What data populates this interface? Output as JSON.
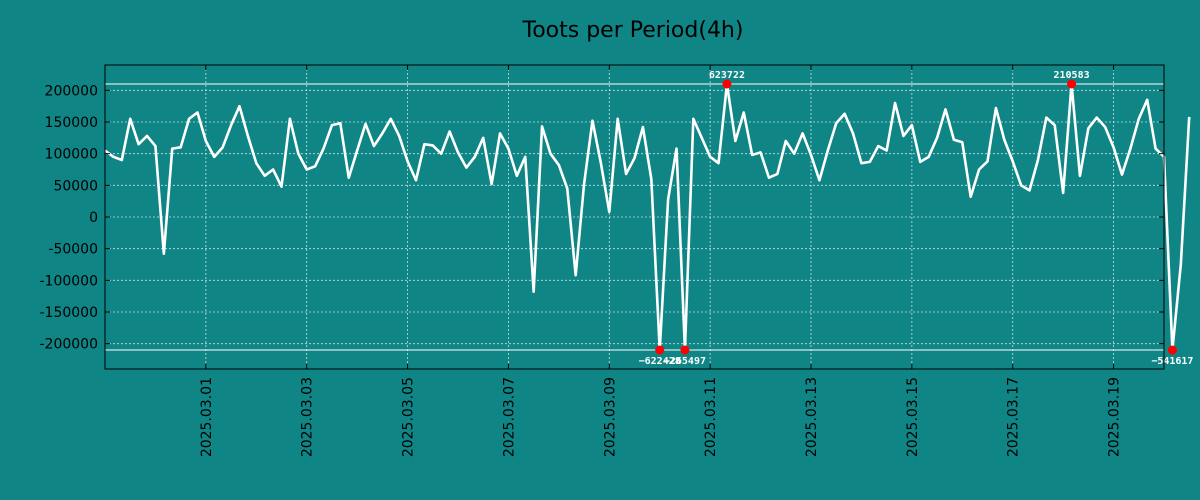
{
  "chart_data": {
    "type": "line",
    "title": "Toots per Period(4h)",
    "xlabel": "",
    "ylabel": "",
    "ylim": [
      -240000,
      240000
    ],
    "xlim": [
      0,
      126
    ],
    "yticks": [
      {
        "value": 200000,
        "label": "200000"
      },
      {
        "value": 150000,
        "label": "150000"
      },
      {
        "value": 100000,
        "label": "100000"
      },
      {
        "value": 50000,
        "label": "50000"
      },
      {
        "value": 0,
        "label": "0"
      },
      {
        "value": -50000,
        "label": "-50000"
      },
      {
        "value": -100000,
        "label": "-100000"
      },
      {
        "value": -150000,
        "label": "-150000"
      },
      {
        "value": -200000,
        "label": "-200000"
      }
    ],
    "xticks": [
      {
        "value": 12,
        "label": "2025.03.01"
      },
      {
        "value": 24,
        "label": "2025.03.03"
      },
      {
        "value": 36,
        "label": "2025.03.05"
      },
      {
        "value": 48,
        "label": "2025.03.07"
      },
      {
        "value": 60,
        "label": "2025.03.09"
      },
      {
        "value": 72,
        "label": "2025.03.11"
      },
      {
        "value": 84,
        "label": "2025.03.13"
      },
      {
        "value": 96,
        "label": "2025.03.15"
      },
      {
        "value": 108,
        "label": "2025.03.17"
      },
      {
        "value": 120,
        "label": "2025.03.19"
      }
    ],
    "clip_lines": {
      "upper": 210000,
      "lower": -210000
    },
    "series": [
      {
        "name": "toots",
        "color": "#ffffff",
        "values": [
          105000,
          95000,
          90000,
          155000,
          115000,
          128000,
          112000,
          -58000,
          108000,
          110000,
          155000,
          165000,
          120000,
          95000,
          110000,
          145000,
          175000,
          128000,
          85000,
          65000,
          75000,
          48000,
          155000,
          100000,
          75000,
          80000,
          108000,
          145000,
          148000,
          62000,
          105000,
          147000,
          112000,
          132000,
          155000,
          128000,
          88000,
          58000,
          115000,
          113000,
          100000,
          135000,
          102000,
          78000,
          95000,
          125000,
          52000,
          132000,
          108000,
          65000,
          95000,
          -118000,
          143000,
          100000,
          82000,
          45000,
          -92000,
          52000,
          152000,
          85000,
          8000,
          155000,
          68000,
          93000,
          142000,
          60000,
          -210000,
          28000,
          108000,
          -210000,
          155000,
          125000,
          95000,
          85000,
          210000,
          120000,
          165000,
          98000,
          102000,
          62000,
          68000,
          120000,
          100000,
          132000,
          98000,
          58000,
          105000,
          148000,
          163000,
          132000,
          85000,
          87000,
          112000,
          105000,
          180000,
          128000,
          145000,
          87000,
          95000,
          125000,
          170000,
          122000,
          118000,
          32000,
          75000,
          88000,
          172000,
          122000,
          88000,
          50000,
          42000,
          90000,
          157000,
          145000,
          38000,
          210000,
          65000,
          140000,
          157000,
          142000,
          110000,
          67000,
          108000,
          155000,
          185000,
          108000,
          95000,
          -210000,
          -75000,
          158000
        ]
      }
    ],
    "annotations": [
      {
        "index": 66,
        "value": -210000,
        "label": "−622428",
        "position": "below"
      },
      {
        "index": 69,
        "value": -210000,
        "label": "−265497",
        "position": "below"
      },
      {
        "index": 74,
        "value": 210000,
        "label": "623722",
        "position": "above"
      },
      {
        "index": 115,
        "value": 210000,
        "label": "210583",
        "position": "above"
      },
      {
        "index": 127,
        "value": -210000,
        "label": "−541617",
        "position": "below"
      }
    ],
    "colors": {
      "background": "#108586",
      "line": "#ffffff",
      "marker": "#ff0000",
      "grid": "#bfe3e3"
    }
  }
}
